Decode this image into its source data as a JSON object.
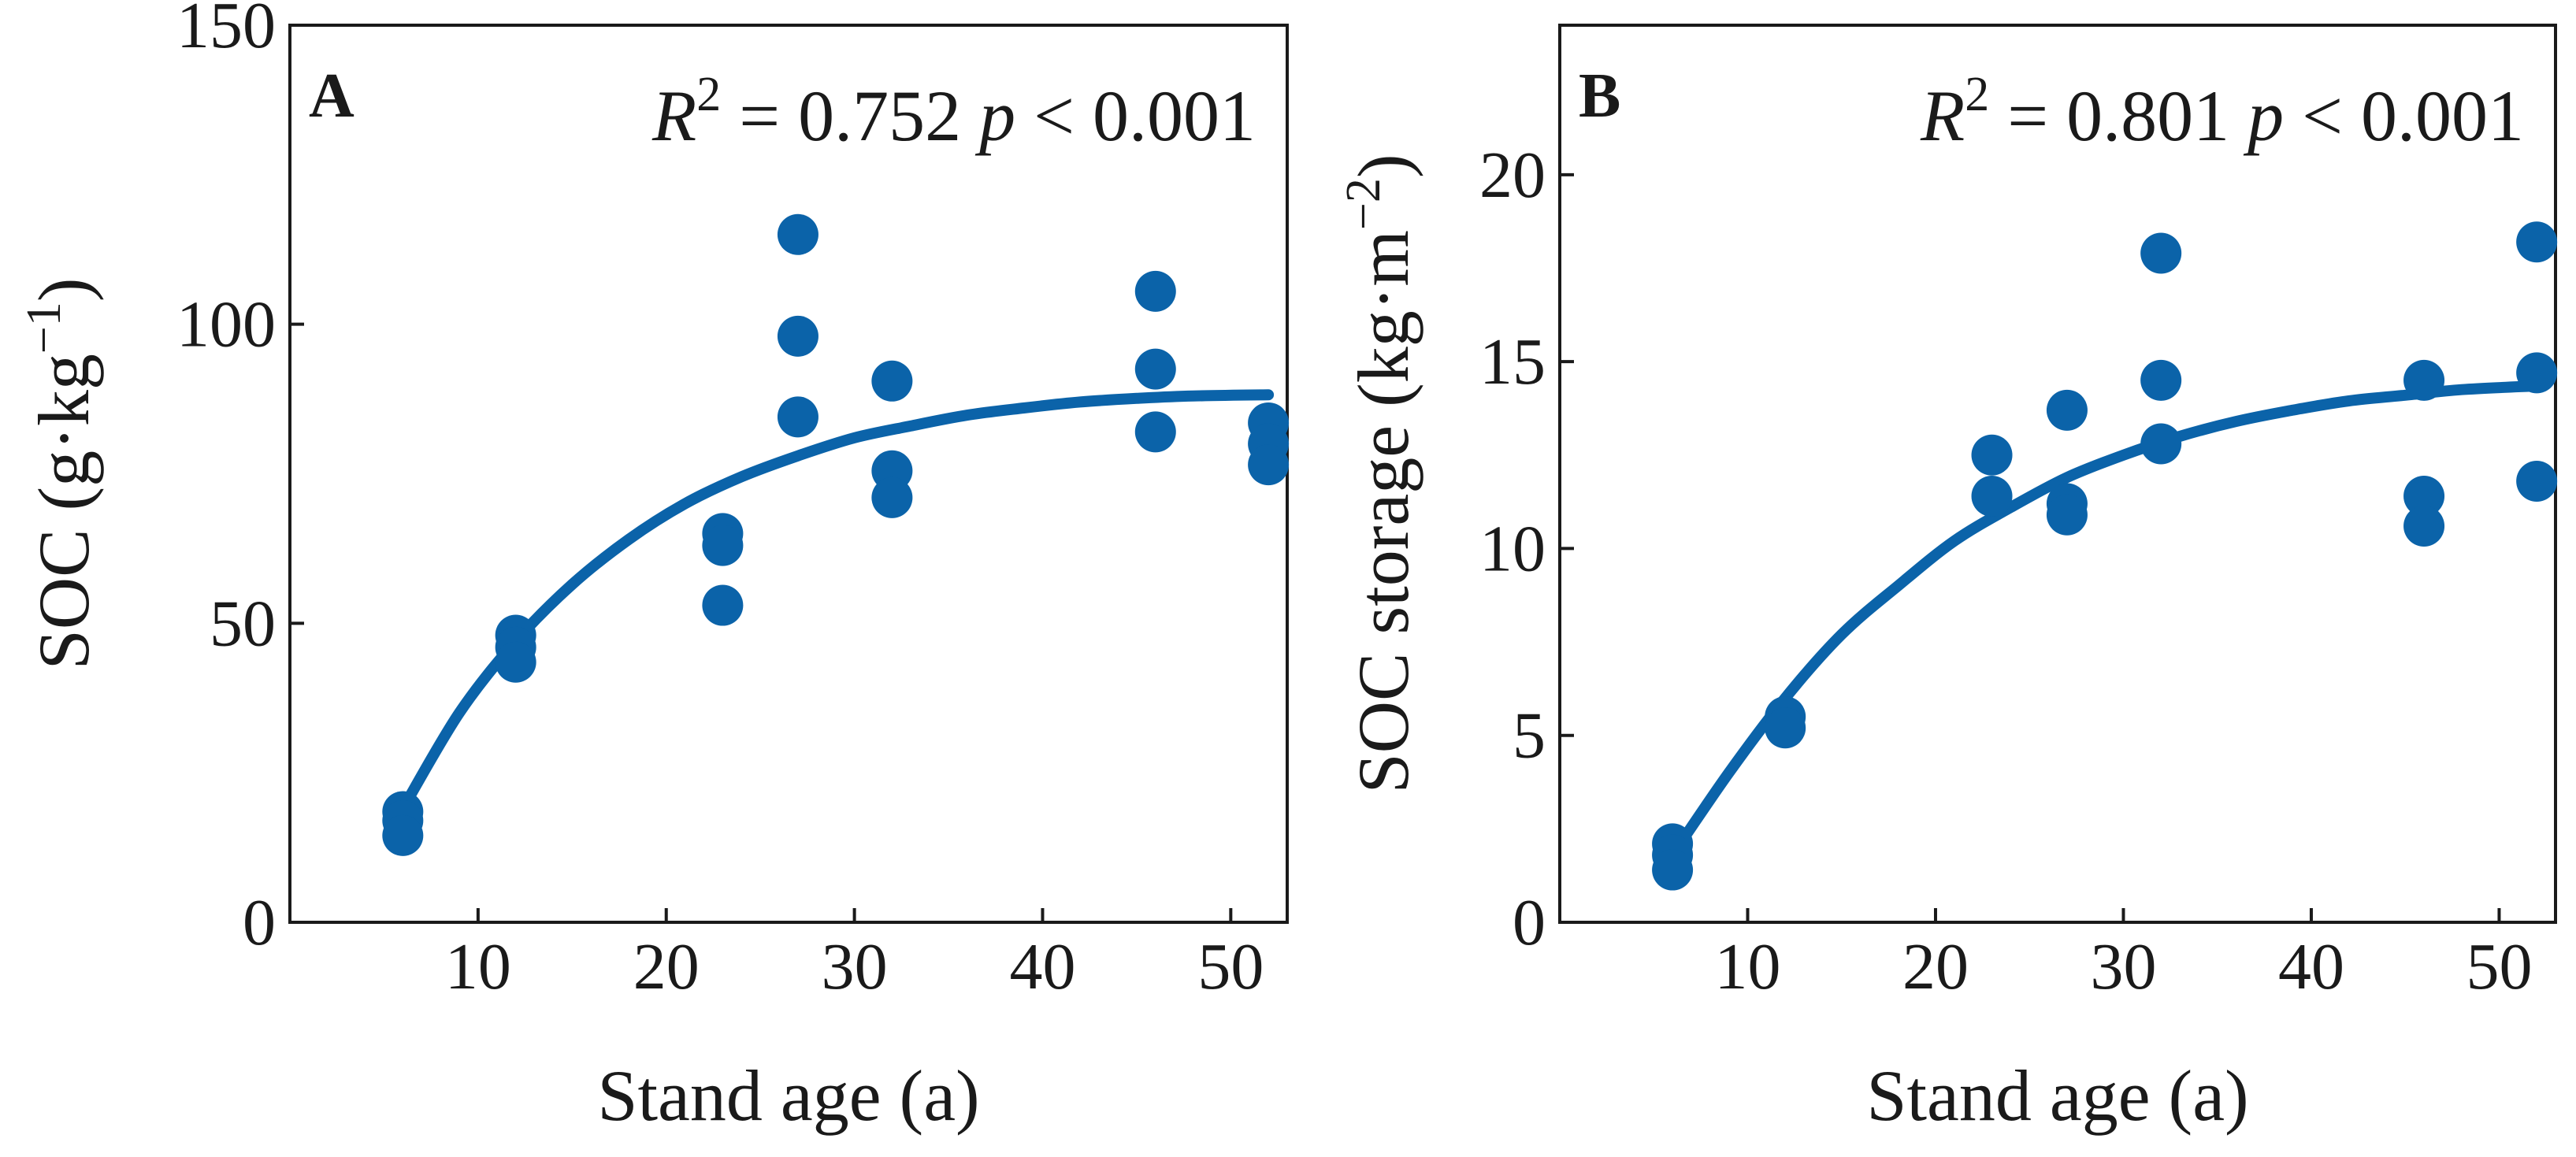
{
  "chart_data": [
    {
      "type": "scatter",
      "panel": "A",
      "xlabel": "Stand age (a)",
      "ylabel": {
        "main": "SOC (g·kg",
        "sup": "−1",
        "close": ")"
      },
      "xlim": [
        0,
        53
      ],
      "ylim": [
        0,
        150
      ],
      "xticks": [
        10,
        20,
        30,
        40,
        50
      ],
      "yticks": [
        0,
        50,
        100,
        150
      ],
      "annotation": {
        "r_symbol": "R",
        "r_exp": "2",
        "r_value": " = 0.752 ",
        "p_symbol": "p",
        "p_value": " < 0.001"
      },
      "points": [
        {
          "x": 6,
          "y": 18.5
        },
        {
          "x": 6,
          "y": 17
        },
        {
          "x": 6,
          "y": 14.5
        },
        {
          "x": 12,
          "y": 48
        },
        {
          "x": 12,
          "y": 46
        },
        {
          "x": 12,
          "y": 43.5
        },
        {
          "x": 23,
          "y": 65
        },
        {
          "x": 23,
          "y": 63
        },
        {
          "x": 23,
          "y": 53
        },
        {
          "x": 27,
          "y": 115
        },
        {
          "x": 27,
          "y": 98
        },
        {
          "x": 27,
          "y": 84.5
        },
        {
          "x": 32,
          "y": 90.5
        },
        {
          "x": 32,
          "y": 75.5
        },
        {
          "x": 32,
          "y": 71
        },
        {
          "x": 46,
          "y": 105.5
        },
        {
          "x": 46,
          "y": 92.5
        },
        {
          "x": 46,
          "y": 82
        },
        {
          "x": 52,
          "y": 83.5
        },
        {
          "x": 52,
          "y": 80
        },
        {
          "x": 52,
          "y": 76.5
        }
      ],
      "fit_curve": {
        "x": [
          6,
          9,
          12,
          15,
          18,
          21,
          24,
          27,
          30,
          33,
          36,
          39,
          42,
          45,
          48,
          52
        ],
        "y": [
          19,
          35,
          47,
          56.5,
          64,
          70,
          74.5,
          78,
          81,
          83,
          84.8,
          86,
          87,
          87.6,
          88,
          88.2
        ]
      },
      "color": "#0b63a9"
    },
    {
      "type": "scatter",
      "panel": "B",
      "xlabel": "Stand age (a)",
      "ylabel": {
        "main": "SOC  storage (kg·m",
        "sup": "−2",
        "close": ")"
      },
      "xlim": [
        0,
        53
      ],
      "ylim": [
        0,
        24
      ],
      "xticks": [
        10,
        20,
        30,
        40,
        50
      ],
      "yticks": [
        0,
        5,
        10,
        15,
        20
      ],
      "annotation": {
        "r_symbol": "R",
        "r_exp": "2",
        "r_value": " = 0.801 ",
        "p_symbol": "p",
        "p_value": " < 0.001"
      },
      "points": [
        {
          "x": 6,
          "y": 2.1
        },
        {
          "x": 6,
          "y": 1.8
        },
        {
          "x": 6,
          "y": 1.4
        },
        {
          "x": 12,
          "y": 5.5
        },
        {
          "x": 12,
          "y": 5.2
        },
        {
          "x": 23,
          "y": 12.5
        },
        {
          "x": 23,
          "y": 11.4
        },
        {
          "x": 27,
          "y": 13.7
        },
        {
          "x": 27,
          "y": 11.2
        },
        {
          "x": 27,
          "y": 10.9
        },
        {
          "x": 32,
          "y": 17.9
        },
        {
          "x": 32,
          "y": 14.5
        },
        {
          "x": 32,
          "y": 12.8
        },
        {
          "x": 46,
          "y": 14.5
        },
        {
          "x": 46,
          "y": 11.4
        },
        {
          "x": 46,
          "y": 10.6
        },
        {
          "x": 52,
          "y": 18.2
        },
        {
          "x": 52,
          "y": 14.7
        },
        {
          "x": 52,
          "y": 11.8
        }
      ],
      "fit_curve": {
        "x": [
          6,
          9,
          12,
          15,
          18,
          21,
          24,
          27,
          30,
          33,
          36,
          39,
          42,
          45,
          48,
          52
        ],
        "y": [
          1.8,
          4.0,
          6.0,
          7.7,
          9.0,
          10.2,
          11.1,
          11.9,
          12.5,
          13.0,
          13.4,
          13.7,
          13.95,
          14.1,
          14.25,
          14.35
        ]
      },
      "color": "#0b63a9"
    }
  ]
}
